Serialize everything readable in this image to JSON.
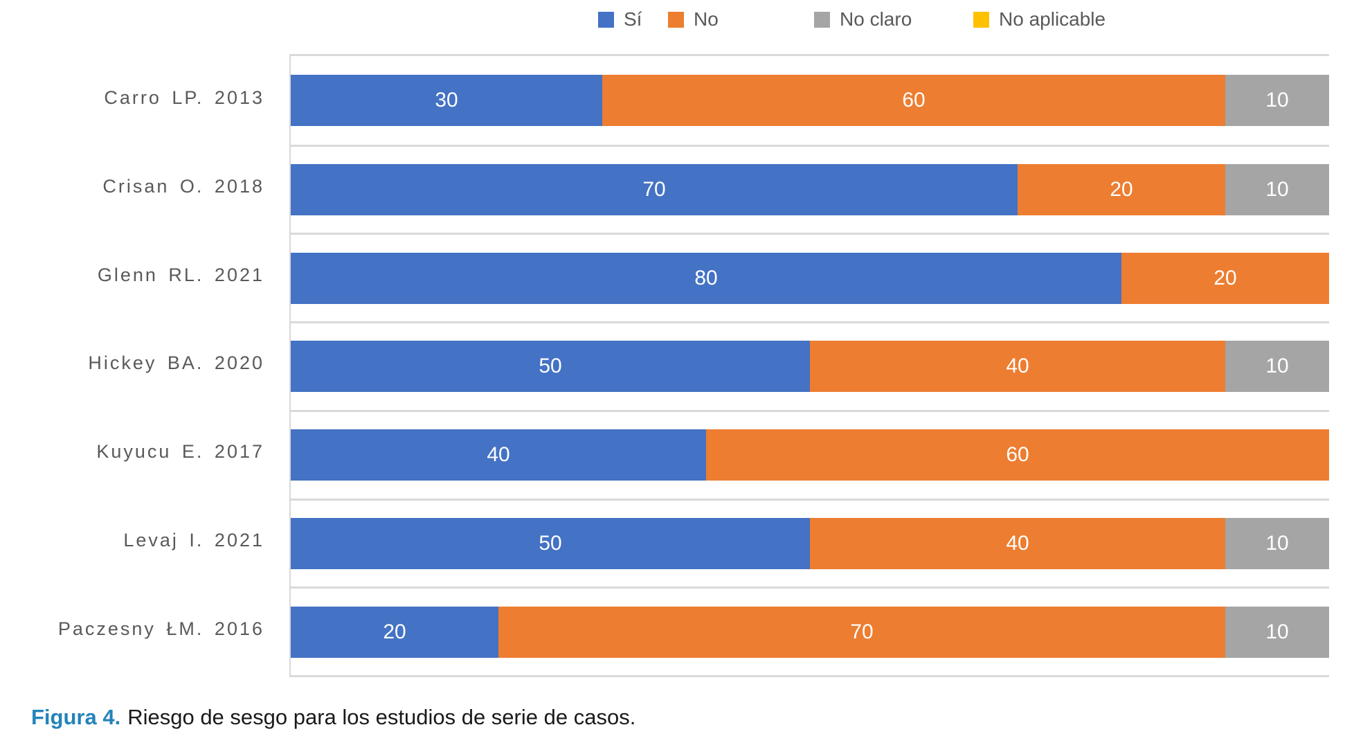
{
  "legend": {
    "items": [
      {
        "label": "Sí",
        "color": "#4472C4"
      },
      {
        "label": "No",
        "color": "#ED7D31"
      },
      {
        "label": "No claro",
        "color": "#A5A5A5"
      },
      {
        "label": "No aplicable",
        "color": "#FFC000"
      }
    ]
  },
  "chart_data": {
    "type": "bar",
    "orientation": "horizontal",
    "stacked": true,
    "grid": "category-band-separators",
    "legend_position": "top",
    "data_labels": "white, centered in each segment, hidden when value is 0",
    "categories": [
      "Carro LP. 2013",
      "Crisan O. 2018",
      "Glenn RL. 2021",
      "Hickey BA. 2020",
      "Kuyucu E. 2017",
      "Levaj I. 2021",
      "Paczesny ŁM. 2016"
    ],
    "series": [
      {
        "name": "Sí",
        "color": "#4472C4",
        "values": [
          30,
          70,
          80,
          50,
          40,
          50,
          20
        ]
      },
      {
        "name": "No",
        "color": "#ED7D31",
        "values": [
          60,
          20,
          20,
          40,
          60,
          40,
          70
        ]
      },
      {
        "name": "No claro",
        "color": "#A5A5A5",
        "values": [
          10,
          10,
          0,
          10,
          0,
          10,
          10
        ]
      },
      {
        "name": "No aplicable",
        "color": "#FFC000",
        "values": [
          0,
          0,
          0,
          0,
          0,
          0,
          0
        ]
      }
    ],
    "xlim": [
      0,
      100
    ]
  },
  "caption": {
    "figure_label": "Figura 4.",
    "text": "Riesgo de sesgo para los estudios de serie de casos."
  },
  "colors": {
    "band_separator": "#D9D9D9",
    "axis_text": "#595959",
    "figure_label_accent": "#2383BA"
  }
}
